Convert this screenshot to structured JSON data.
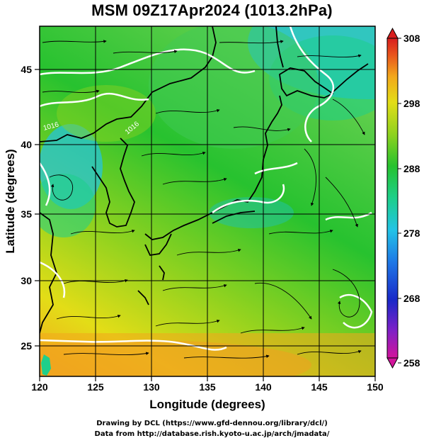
{
  "title": "MSM 09Z17Apr2024 (1013.2hPa)",
  "map": {
    "x_axis_label": "Longitude (degrees)",
    "y_axis_label": "Latitude  (degrees)",
    "lon_range": [
      120,
      150
    ],
    "lat_range": [
      22.4,
      47.6
    ],
    "lon_ticks": [
      "120",
      "125",
      "130",
      "135",
      "140",
      "145",
      "150"
    ],
    "lat_ticks": [
      "25",
      "30",
      "35",
      "40",
      "45"
    ],
    "gridlines": true,
    "field": "temperature (K) shaded, with wind streamlines, coastlines and white contours"
  },
  "colorbar": {
    "range": [
      258,
      308
    ],
    "labels": [
      "308",
      "298",
      "288",
      "278",
      "268",
      "258"
    ],
    "colors": [
      "#d2149b",
      "#7a21c8",
      "#1a28c8",
      "#1e78e6",
      "#22c3e6",
      "#1ecf8a",
      "#27c22f",
      "#8fd21f",
      "#e3dd17",
      "#f2a81c",
      "#e8521d",
      "#d81e1e"
    ]
  },
  "contour_labels": [
    "1016",
    "1016"
  ],
  "credits": {
    "line1": "Drawing by DCL (https://www.gfd-dennou.org/library/dcl/)",
    "line2": "Data from http://database.rish.kyoto-u.ac.jp/arch/jmadata/"
  }
}
